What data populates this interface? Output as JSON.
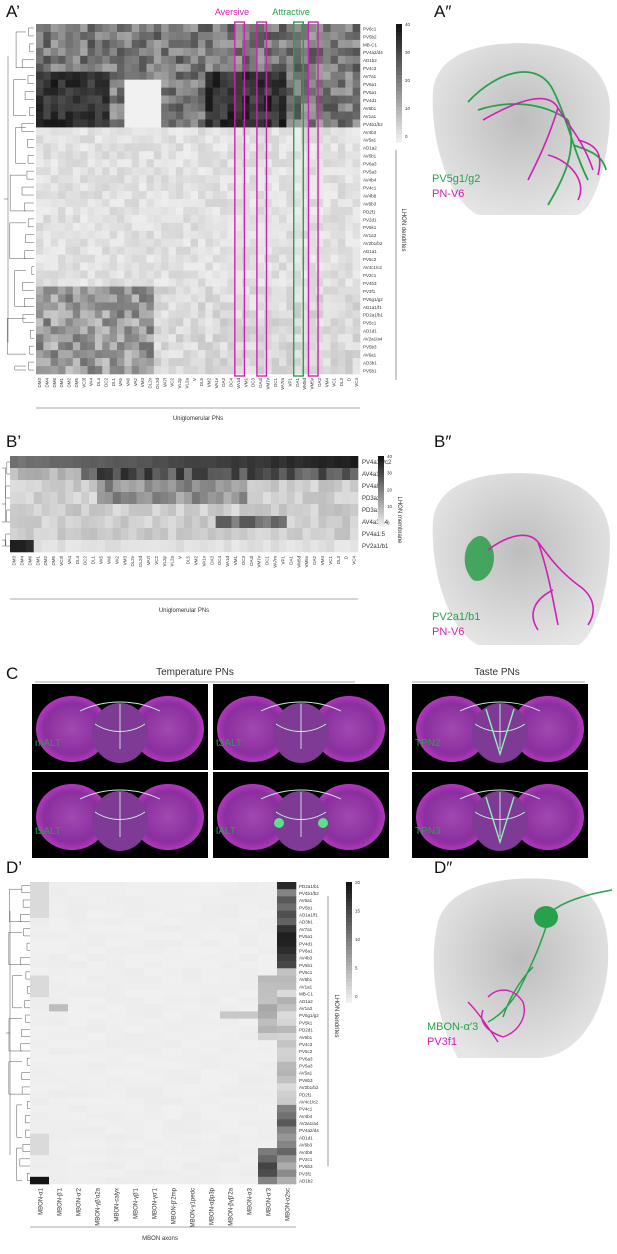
{
  "panels": {
    "a_prime": "A’",
    "a_dprime": "A″",
    "b_prime": "B’",
    "b_dprime": "B″",
    "c": "C",
    "d_prime": "D’",
    "d_dprime": "D″"
  },
  "colors": {
    "magenta": "#d21fb4",
    "green": "#27a24a",
    "brain": "#c8c8c8",
    "purple": "#8b3fa0"
  },
  "panelA": {
    "aversive": "Aversive",
    "attractive": "Attractive",
    "xaxis_title": "Uniglomerular PNs",
    "yaxis_title": "LHON dendrites",
    "cb_ticks": [
      "40",
      "30",
      "20",
      "10",
      "0"
    ],
    "rows": [
      "PV6c1",
      "PV5b2",
      "MB-C1",
      "PV4a2/d4",
      "AD1b2",
      "PV4c3",
      "AV7a1",
      "PV6a1",
      "PV5a1",
      "PV4d1",
      "AV6b1",
      "AV1a1",
      "PV4b1/b2",
      "AV4b3",
      "AV5a1",
      "AD1a2",
      "AV6b1",
      "PV6a3",
      "PV5a3",
      "AV4b4",
      "PV4c1",
      "AV4b8",
      "AV6b3",
      "PD2f1",
      "PV2d1",
      "PV5k1",
      "AV1a3",
      "AV2b1/b2",
      "AD1a1",
      "PV5c2",
      "AV4c1/c2",
      "PV2c1",
      "PV4b3",
      "PV3f1",
      "PV5g1/g2",
      "AD1a1/f1",
      "PD2a1/b1",
      "PV5c1",
      "AD1d1",
      "AV2a1/a4",
      "PV5b3",
      "AV6a1",
      "AD3b1",
      "PV5b1"
    ],
    "cols": [
      "DM3",
      "DM4",
      "DM6",
      "DM1",
      "DM2",
      "DM5",
      "VC3l",
      "VA4",
      "DL4",
      "DC2",
      "DL1",
      "VA5",
      "VA6",
      "VA2",
      "VM3",
      "DL2v",
      "DL2d",
      "VA7l",
      "VC2",
      "VL2p",
      "VL2a",
      "V",
      "DL5",
      "VM2",
      "VA1v",
      "DA3",
      "DC4",
      "VA1d",
      "VM1",
      "DC3",
      "DA4l",
      "VM7v",
      "DC1",
      "VA7m",
      "VP1",
      "DA1",
      "VM5d",
      "VM5v",
      "DA2",
      "VM4",
      "VC1",
      "DL3",
      "D",
      "VC4"
    ]
  },
  "legendA": {
    "g": "PV5g1/g2",
    "m": "PN-V6"
  },
  "panelB": {
    "rows": [
      "PV4a12/c2",
      "AV4a1",
      "PV4a9",
      "PD3a2",
      "PD3a1",
      "AV4a3/a4",
      "PV4a1:5",
      "PV2a1/b1"
    ],
    "xaxis_title": "Uniglomerular PNs",
    "yaxis_title": "LHON membrane",
    "cb_ticks": [
      "40",
      "30",
      "20",
      "10",
      "0"
    ]
  },
  "legendB": {
    "g": "PV2a1/b1",
    "m": "PN-V6"
  },
  "panelC": {
    "temp_title": "Temperature PNs",
    "taste_title": "Taste PNs",
    "labels": [
      "mALT",
      "t3ALT",
      "t5ALT",
      "lALT",
      "TPN2",
      "TPN3"
    ]
  },
  "panelD": {
    "cols": [
      "MBON-α1",
      "MBON-β′1",
      "MBON-α′2",
      "MBON-γβ′α2a",
      "MBON-calyx",
      "MBON-γβ′1",
      "MBON-γα′1",
      "MBON-β′2mp",
      "MBON-γ1pedc",
      "MBON-αβp3p",
      "MBON-βγβ′2a",
      "MBON-α3",
      "MBON-α′3",
      "MBON-α2sc"
    ],
    "rows": [
      "PD2a1/b1",
      "PV4b1/b2",
      "AV6a1",
      "PV5b1",
      "AD1a1/f1",
      "AD3b1",
      "AV7a1",
      "PV5a1",
      "PV4d1",
      "PV6a1",
      "AV4b3",
      "PV5b1",
      "PV5c1",
      "AV6b1",
      "AV1a1",
      "MB-C1",
      "AD1a2",
      "AV1a3",
      "PV5g1/g2",
      "PV5k1",
      "PD2d1",
      "AV6b1",
      "PV4c3",
      "PV5c2",
      "PV6a3",
      "PV5a3",
      "AV5a1",
      "PV6b3",
      "AV2b1/b2",
      "PD2f1",
      "AV4c1/c2",
      "PV4c1",
      "AV4b4",
      "AV2a1/a4",
      "PV4a2/d4",
      "AD1d1",
      "AV6b3",
      "AV4b8",
      "PV2c1",
      "PV6b3",
      "PV3f1",
      "AD1b2"
    ],
    "xaxis_title": "MBON axons",
    "yaxis_title": "LHON dendrites",
    "cb_ticks": [
      "20",
      "15",
      "10",
      "5",
      "0"
    ]
  },
  "legendD": {
    "g": "MBON-α′3",
    "m": "PV3f1"
  }
}
